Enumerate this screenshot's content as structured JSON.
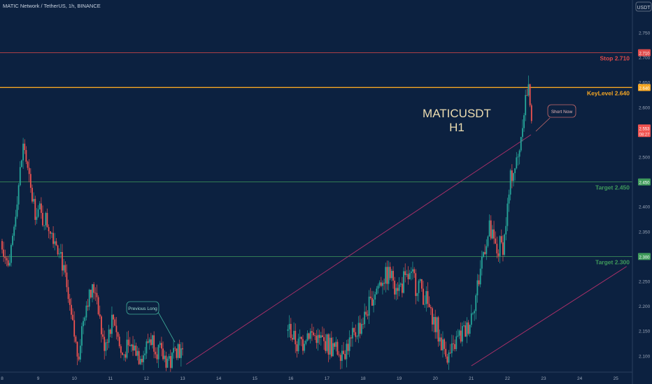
{
  "header": {
    "title": "MATIC Network / TetherUS, 1h, BINANCE"
  },
  "price_axis": {
    "currency": "USDT",
    "ticks": [
      "2.750",
      "2.700",
      "2.650",
      "2.600",
      "2.550",
      "2.500",
      "2.450",
      "2.400",
      "2.350",
      "2.300",
      "2.250",
      "2.200",
      "2.150",
      "2.100"
    ]
  },
  "time_axis": {
    "ticks": [
      "8",
      "9",
      "10",
      "11",
      "12",
      "13",
      "14",
      "15",
      "16",
      "17",
      "18",
      "19",
      "20",
      "21",
      "22",
      "23",
      "24",
      "25"
    ]
  },
  "annotations": {
    "main_label_line1": "MATICUSDT",
    "main_label_line2": "H1",
    "short_now": "Short Now",
    "previous_long": "Previous Long"
  },
  "levels": [
    {
      "id": "stop",
      "label": "Stop 2.710",
      "price": 2.71,
      "tag": "2.710",
      "color": "#e04a4a"
    },
    {
      "id": "key",
      "label": "KeyLevel 2.640",
      "price": 2.64,
      "tag": "2.640",
      "color": "#f5a623"
    },
    {
      "id": "target1",
      "label": "Target 2.450",
      "price": 2.45,
      "tag": "2.450",
      "color": "#3f9a5b"
    },
    {
      "id": "target2",
      "label": "Target 2.300",
      "price": 2.3,
      "tag": "2.300",
      "color": "#3f9a5b"
    }
  ],
  "current_price": {
    "line1": "2.553",
    "line2": "08:27",
    "price": 2.553,
    "color": "#ef5350"
  },
  "chart_data": {
    "type": "candlestick",
    "title": "MATIC Network / TetherUS, 1h, BINANCE",
    "ylabel": "USDT",
    "ylim": [
      2.08,
      2.78
    ],
    "x_ticks": [
      "8",
      "9",
      "10",
      "11",
      "12",
      "13",
      "14",
      "15",
      "16",
      "17",
      "18",
      "19",
      "20",
      "21",
      "22",
      "23",
      "24",
      "25"
    ],
    "colors": {
      "up": "#26a69a",
      "down": "#ef5350"
    },
    "price_path": [
      {
        "x": 8.0,
        "y": 2.33
      },
      {
        "x": 8.2,
        "y": 2.27
      },
      {
        "x": 8.4,
        "y": 2.41
      },
      {
        "x": 8.6,
        "y": 2.53
      },
      {
        "x": 8.8,
        "y": 2.42
      },
      {
        "x": 9.0,
        "y": 2.39
      },
      {
        "x": 9.3,
        "y": 2.36
      },
      {
        "x": 9.6,
        "y": 2.32
      },
      {
        "x": 9.8,
        "y": 2.22
      },
      {
        "x": 10.1,
        "y": 2.1
      },
      {
        "x": 10.3,
        "y": 2.2
      },
      {
        "x": 10.6,
        "y": 2.24
      },
      {
        "x": 10.8,
        "y": 2.12
      },
      {
        "x": 11.1,
        "y": 2.18
      },
      {
        "x": 11.3,
        "y": 2.1
      },
      {
        "x": 11.6,
        "y": 2.12
      },
      {
        "x": 11.9,
        "y": 2.1
      },
      {
        "x": 12.1,
        "y": 2.14
      },
      {
        "x": 12.4,
        "y": 2.1
      },
      {
        "x": 12.7,
        "y": 2.09
      },
      {
        "x": 12.8,
        "y": 2.13
      },
      {
        "x": 13.0,
        "y": 2.1
      },
      {
        "x": 15.9,
        "y": 2.16
      },
      {
        "x": 16.2,
        "y": 2.12
      },
      {
        "x": 16.5,
        "y": 2.15
      },
      {
        "x": 16.8,
        "y": 2.13
      },
      {
        "x": 17.1,
        "y": 2.12
      },
      {
        "x": 17.3,
        "y": 2.11
      },
      {
        "x": 17.6,
        "y": 2.12
      },
      {
        "x": 17.9,
        "y": 2.16
      },
      {
        "x": 18.1,
        "y": 2.19
      },
      {
        "x": 18.4,
        "y": 2.24
      },
      {
        "x": 18.7,
        "y": 2.27
      },
      {
        "x": 19.0,
        "y": 2.24
      },
      {
        "x": 19.3,
        "y": 2.26
      },
      {
        "x": 19.6,
        "y": 2.24
      },
      {
        "x": 19.9,
        "y": 2.18
      },
      {
        "x": 20.2,
        "y": 2.12
      },
      {
        "x": 20.4,
        "y": 2.1
      },
      {
        "x": 20.6,
        "y": 2.13
      },
      {
        "x": 20.9,
        "y": 2.16
      },
      {
        "x": 21.1,
        "y": 2.21
      },
      {
        "x": 21.3,
        "y": 2.3
      },
      {
        "x": 21.5,
        "y": 2.35
      },
      {
        "x": 21.7,
        "y": 2.31
      },
      {
        "x": 21.9,
        "y": 2.33
      },
      {
        "x": 22.1,
        "y": 2.46
      },
      {
        "x": 22.3,
        "y": 2.5
      },
      {
        "x": 22.5,
        "y": 2.62
      },
      {
        "x": 22.6,
        "y": 2.64
      },
      {
        "x": 22.7,
        "y": 2.553
      }
    ]
  }
}
